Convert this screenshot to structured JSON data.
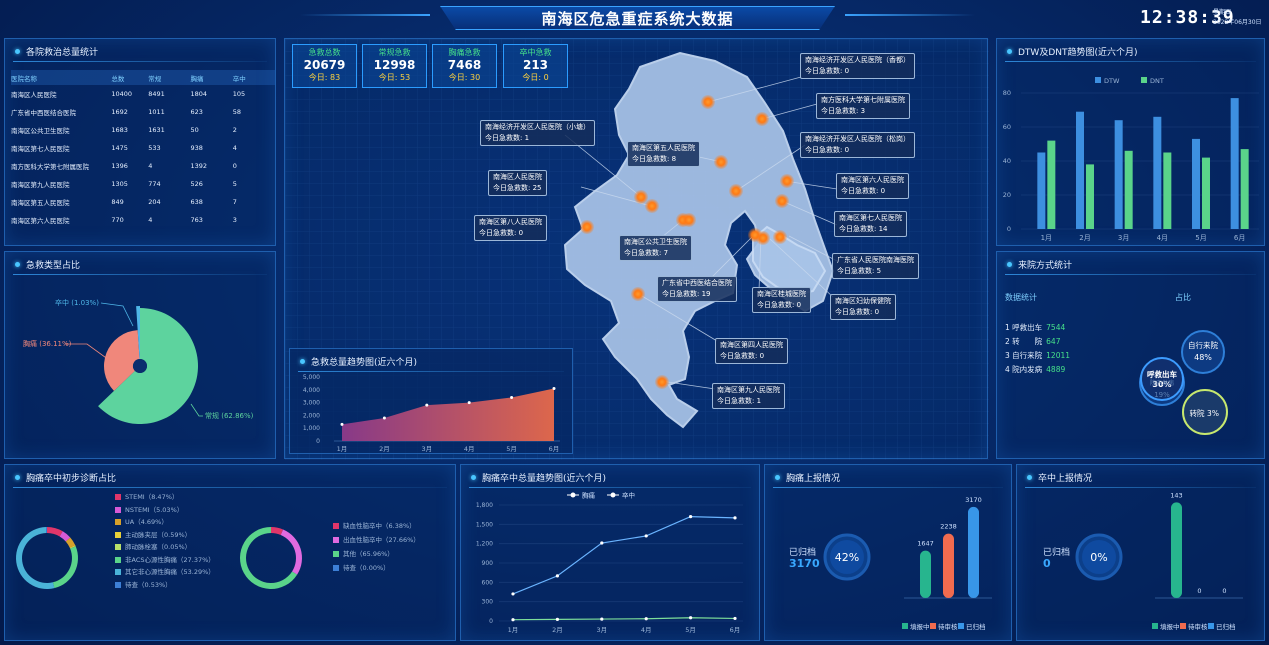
{
  "header": {
    "title": "南海区危急重症系统大数据",
    "time": "12:38:39",
    "weekday": "星期四",
    "date": "2022年06月30日"
  },
  "hospital_stats": {
    "title": "各院救治总量统计",
    "columns": [
      "医院名称",
      "总数",
      "常规",
      "胸痛",
      "卒中"
    ],
    "rows": [
      [
        "南海区人民医院",
        "10400",
        "8491",
        "1804",
        "105"
      ],
      [
        "广东省中西医结合医院",
        "1692",
        "1011",
        "623",
        "58"
      ],
      [
        "南海区公共卫生医院",
        "1683",
        "1631",
        "50",
        "2"
      ],
      [
        "南海区第七人民医院",
        "1475",
        "533",
        "938",
        "4"
      ],
      [
        "南方医科大学第七附属医院",
        "1396",
        "4",
        "1392",
        "0"
      ],
      [
        "南海区第九人民医院",
        "1305",
        "774",
        "526",
        "5"
      ],
      [
        "南海区第五人民医院",
        "849",
        "204",
        "638",
        "7"
      ],
      [
        "南海区第六人民医院",
        "770",
        "4",
        "763",
        "3"
      ]
    ]
  },
  "emergency_type": {
    "title": "急救类型占比",
    "chart_data": {
      "type": "pie",
      "slices": [
        {
          "name": "常规",
          "value": 62.86,
          "label": "常规 (62.86%)",
          "color": "#5dd39e"
        },
        {
          "name": "胸痛",
          "value": 36.11,
          "label": "胸痛 (36.11%)",
          "color": "#f0877b"
        },
        {
          "name": "卒中",
          "value": 1.03,
          "label": "卒中 (1.03%)",
          "color": "#4fb7e8"
        }
      ]
    }
  },
  "kpis": [
    {
      "label": "急救总数",
      "value": "20679",
      "today": "今日: 83"
    },
    {
      "label": "常规急救",
      "value": "12998",
      "today": "今日: 53"
    },
    {
      "label": "胸痛急救",
      "value": "7468",
      "today": "今日: 30"
    },
    {
      "label": "卒中急救",
      "value": "213",
      "today": "今日: 0"
    }
  ],
  "map_labels": [
    {
      "name": "南海经济开发区人民医院（香都）",
      "count": "今日急救数: 0"
    },
    {
      "name": "南方医科大学第七附属医院",
      "count": "今日急救数: 3"
    },
    {
      "name": "南海经济开发区人民医院（小塘）",
      "count": "今日急救数: 1"
    },
    {
      "name": "南海区第五人民医院",
      "count": "今日急救数: 8"
    },
    {
      "name": "南海经济开发区人民医院（松岗）",
      "count": "今日急救数: 0"
    },
    {
      "name": "南海区人民医院",
      "count": "今日急救数: 25"
    },
    {
      "name": "南海区第六人民医院",
      "count": "今日急救数: 0"
    },
    {
      "name": "南海区第八人民医院",
      "count": "今日急救数: 0"
    },
    {
      "name": "南海区第七人民医院",
      "count": "今日急救数: 14"
    },
    {
      "name": "南海区公共卫生医院",
      "count": "今日急救数: 7"
    },
    {
      "name": "广东省人民医院南海医院",
      "count": "今日急救数: 5"
    },
    {
      "name": "广东省中西医结合医院",
      "count": "今日急救数: 19"
    },
    {
      "name": "南海区桂城医院",
      "count": "今日急救数: 0"
    },
    {
      "name": "南海区妇幼保健院",
      "count": "今日急救数: 0"
    },
    {
      "name": "南海区第四人民医院",
      "count": "今日急救数: 0"
    },
    {
      "name": "南海区第九人民医院",
      "count": "今日急救数: 1"
    }
  ],
  "trend_total": {
    "title": "急救总量趋势图(近六个月)",
    "chart_data": {
      "type": "area",
      "categories": [
        "1月",
        "2月",
        "3月",
        "4月",
        "5月",
        "6月"
      ],
      "values": [
        1300,
        1800,
        2800,
        3000,
        3400,
        4100
      ],
      "ylim": [
        0,
        5000
      ],
      "yticks": [
        "5,000",
        "4,000",
        "3,000",
        "2,000",
        "1,000",
        "0"
      ]
    }
  },
  "dtw_dnt": {
    "title": "DTW及DNT趋势图(近六个月)",
    "chart_data": {
      "type": "bar",
      "categories": [
        "1月",
        "2月",
        "3月",
        "4月",
        "5月",
        "6月"
      ],
      "series": [
        {
          "name": "DTW",
          "values": [
            45,
            69,
            64,
            66,
            53,
            77
          ],
          "color": "#3d8fe0"
        },
        {
          "name": "DNT",
          "values": [
            52,
            38,
            46,
            45,
            42,
            47
          ],
          "color": "#5ad48a"
        }
      ],
      "ylim": [
        0,
        80
      ],
      "yticks": [
        "80",
        "60",
        "40",
        "20",
        "0"
      ]
    }
  },
  "arrival": {
    "title": "来院方式统计",
    "sub_left": "数据统计",
    "sub_right": "占比",
    "items": [
      {
        "label": "1 呼救出车",
        "value": "7544"
      },
      {
        "label": "2 转　　院",
        "value": "647"
      },
      {
        "label": "3 自行来院",
        "value": "12011"
      },
      {
        "label": "4 院内发病",
        "value": "4889"
      }
    ],
    "bubbles": [
      {
        "label": "自行来院",
        "pct": "48%"
      },
      {
        "label": "呼救出车",
        "pct": "30%"
      },
      {
        "label": "院内发病",
        "pct": "19%"
      },
      {
        "label": "转院",
        "pct": "3%"
      }
    ]
  },
  "diagnosis": {
    "title": "胸痛卒中初步诊断占比",
    "chest": [
      {
        "label": "STEMI（8.47%）",
        "value": 8.47,
        "color": "#e0366a"
      },
      {
        "label": "NSTEMI（5.03%）",
        "value": 5.03,
        "color": "#d65ad6"
      },
      {
        "label": "UA（4.69%）",
        "value": 4.69,
        "color": "#d7a02a"
      },
      {
        "label": "主动脉夹层（0.59%）",
        "value": 0.59,
        "color": "#e8d13a"
      },
      {
        "label": "肺动脉栓塞（0.05%）",
        "value": 0.05,
        "color": "#b7e06a"
      },
      {
        "label": "非ACS心源性胸痛（27.37%）",
        "value": 27.37,
        "color": "#5ad48a"
      },
      {
        "label": "其它非心源性胸痛（53.29%）",
        "value": 53.29,
        "color": "#4ab3d8"
      },
      {
        "label": "待查（0.53%）",
        "value": 0.53,
        "color": "#3d7fd6"
      }
    ],
    "stroke": [
      {
        "label": "缺血性脑卒中（6.38%）",
        "value": 6.38,
        "color": "#e0366a"
      },
      {
        "label": "出血性脑卒中（27.66%）",
        "value": 27.66,
        "color": "#e06ae0"
      },
      {
        "label": "其他（65.96%）",
        "value": 65.96,
        "color": "#5ad48a"
      },
      {
        "label": "待查（0.00%）",
        "value": 0.0,
        "color": "#3d7fd6"
      }
    ]
  },
  "chest_stroke_trend": {
    "title": "胸痛卒中总量趋势图(近六个月)",
    "chart_data": {
      "type": "line",
      "categories": [
        "1月",
        "2月",
        "3月",
        "4月",
        "5月",
        "6月"
      ],
      "series": [
        {
          "name": "胸痛",
          "values": [
            420,
            700,
            1210,
            1320,
            1620,
            1600
          ],
          "color": "#6ab4ff"
        },
        {
          "name": "卒中",
          "values": [
            20,
            25,
            30,
            35,
            50,
            40
          ],
          "color": "#7ddf9a"
        }
      ],
      "ylim": [
        0,
        1800
      ],
      "yticks": [
        "1,800",
        "1,500",
        "1,200",
        "900",
        "600",
        "300",
        "0"
      ]
    }
  },
  "chest_report": {
    "title": "胸痛上报情况",
    "archived_label": "已归档",
    "archived_value": "3170",
    "pct": "42%",
    "chart_data": {
      "type": "bar",
      "categories": [
        "填报中",
        "待审核",
        "已归档"
      ],
      "values": [
        1647,
        2238,
        3170
      ],
      "value_labels": [
        "1647",
        "2238",
        "3170"
      ],
      "colors": [
        "#27b58e",
        "#f06b4f",
        "#3896e8"
      ],
      "ylim": [
        0,
        3200
      ]
    },
    "legend": [
      "填报中",
      "待审核",
      "已归档"
    ]
  },
  "stroke_report": {
    "title": "卒中上报情况",
    "archived_label": "已归档",
    "archived_value": "0",
    "pct": "0%",
    "chart_data": {
      "type": "bar",
      "categories": [
        "填报中",
        "待审核",
        "已归档"
      ],
      "values": [
        143,
        0,
        0
      ],
      "value_labels": [
        "143",
        "0",
        "0"
      ],
      "colors": [
        "#27b58e",
        "#f06b4f",
        "#3896e8"
      ],
      "ylim": [
        0,
        145
      ]
    },
    "legend": [
      "填报中",
      "待审核",
      "已归档"
    ]
  }
}
